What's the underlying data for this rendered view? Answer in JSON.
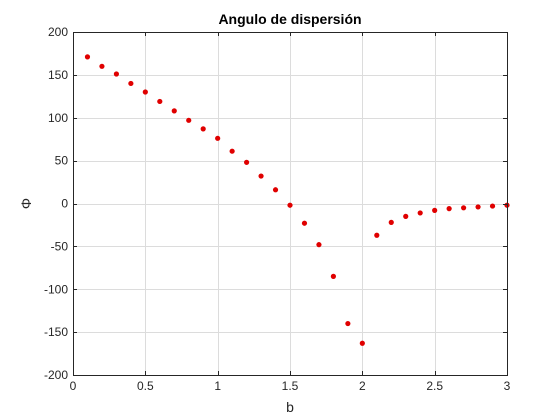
{
  "chart_data": {
    "type": "scatter",
    "title": "Angulo de dispersión",
    "xlabel": "b",
    "ylabel": "Φ",
    "xlim": [
      0,
      3
    ],
    "ylim": [
      -200,
      200
    ],
    "xticks": [
      0,
      0.5,
      1,
      1.5,
      2,
      2.5,
      3
    ],
    "xtick_labels": [
      "0",
      "0.5",
      "1",
      "1.5",
      "2",
      "2.5",
      "3"
    ],
    "yticks": [
      -200,
      -150,
      -100,
      -50,
      0,
      50,
      100,
      150,
      200
    ],
    "ytick_labels": [
      "-200",
      "-150",
      "-100",
      "-50",
      "0",
      "50",
      "100",
      "150",
      "200"
    ],
    "grid": true,
    "legend": "none",
    "marker_color": "#e00000",
    "series": [
      {
        "x": [
          0.1,
          0.2,
          0.3,
          0.4,
          0.5,
          0.6,
          0.7,
          0.8,
          0.9,
          1.0,
          1.1,
          1.2,
          1.3,
          1.4,
          1.5,
          1.6,
          1.7,
          1.8,
          1.9,
          2.0,
          2.1,
          2.2,
          2.3,
          2.4,
          2.5,
          2.6,
          2.7,
          2.8,
          2.9,
          3.0
        ],
        "y": [
          171,
          160,
          151,
          140,
          130,
          119,
          108,
          97,
          87,
          76,
          61,
          48,
          32,
          16,
          -2,
          -23,
          -48,
          -85,
          -140,
          -163,
          -37,
          -22,
          -15,
          -11,
          -8,
          -6,
          -5,
          -4,
          -3,
          -2
        ]
      }
    ]
  }
}
